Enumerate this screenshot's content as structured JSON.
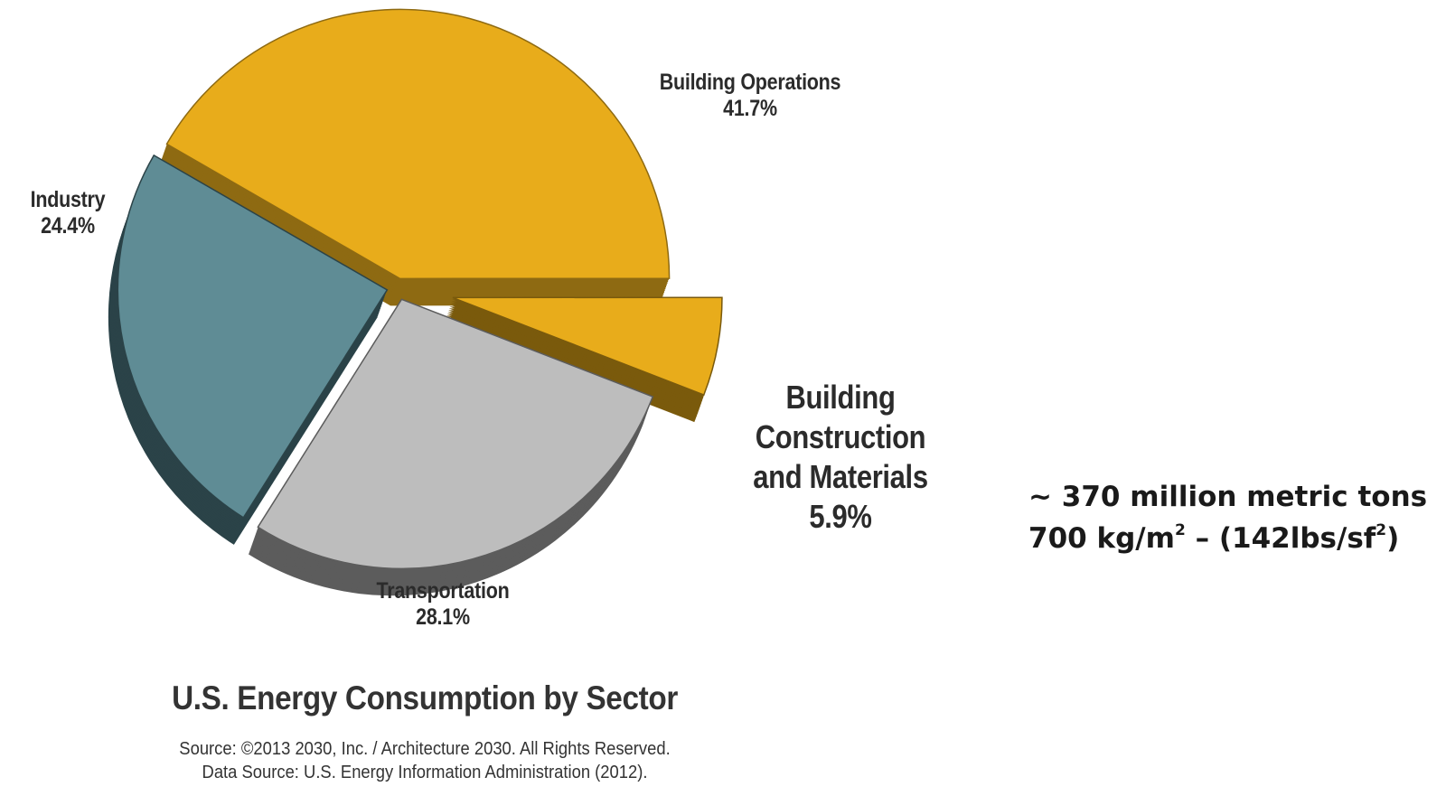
{
  "chart_data": {
    "type": "pie",
    "title": "U.S. Energy Consumption by Sector",
    "slices": [
      {
        "name": "Building Operations",
        "value": 41.7,
        "label": "41.7%",
        "color": "#E8AC1B",
        "side": "#8E6A12"
      },
      {
        "name": "Building Construction and Materials",
        "value": 5.9,
        "label": "5.9%",
        "color": "#E8AC1B",
        "side": "#7A5A0C"
      },
      {
        "name": "Transportation",
        "value": 28.1,
        "label": "28.1%",
        "color": "#BDBDBD",
        "side": "#5C5C5C"
      },
      {
        "name": "Industry",
        "value": 24.4,
        "label": "24.4%",
        "color": "#5F8C95",
        "side": "#2B4348"
      }
    ],
    "exploded": [
      "Building Construction and Materials"
    ],
    "source_lines": [
      "Source: ©2013 2030, Inc. / Architecture 2030. All Rights Reserved.",
      "Data Source: U.S. Energy Information Administration (2012)."
    ]
  },
  "labels": {
    "building_operations": {
      "name": "Building Operations",
      "pct": "41.7%"
    },
    "construction": {
      "line1": "Building",
      "line2": "Construction",
      "line3": "and Materials",
      "pct": "5.9%"
    },
    "transportation": {
      "name": "Transportation",
      "pct": "28.1%"
    },
    "industry": {
      "name": "Industry",
      "pct": "24.4%"
    }
  },
  "note": {
    "line1": "~ 370 million metric tons",
    "line2_prefix": "700 kg/m",
    "line2_sup1": "2",
    "line2_mid": " – (142lbs/sf",
    "line2_sup2": "2",
    "line2_suffix": ")"
  }
}
